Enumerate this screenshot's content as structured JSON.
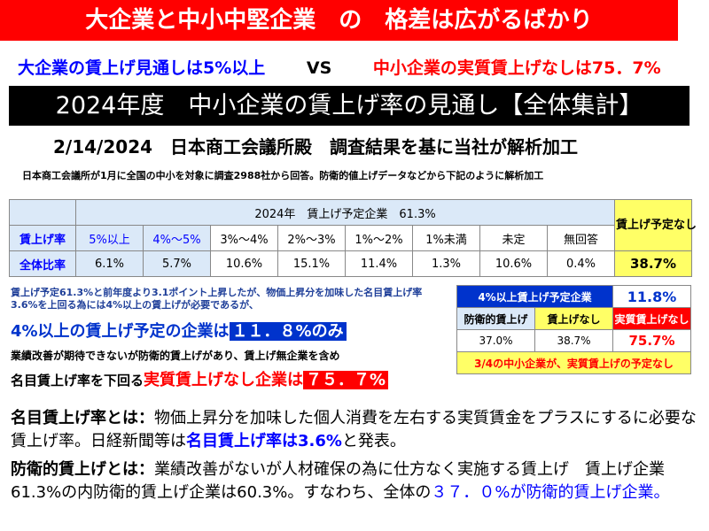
{
  "header": {
    "title": "大企業と中小中堅企業　の　格差は広がるばかり",
    "comparison": {
      "left": "大企業の賃上げ見通しは5%以上",
      "vs": "VS",
      "right": "中小企業の実質賃上げなしは75．7%"
    },
    "banner": "2024年度　中小企業の賃上げ率の見通し【全体集計】",
    "source": "2/14/2024　日本商工会議所殿　調査結果を基に当社が解析加工",
    "note": "日本商工会議所が1月に全国の中小を対象に調査2988社から回答。防衛的値上げデータなどから下記のように解析加工"
  },
  "table": {
    "group_header": "2024年　賃上げ予定企業　61.3%",
    "no_raise_header": "賃上げ予定なし",
    "rows": [
      [
        "賃上げ率",
        "5%以上",
        "4%～5%",
        "3%～4%",
        "2%～3%",
        "1%～2%",
        "1%未満",
        "未定",
        "無回答"
      ],
      [
        "全体比率",
        "6.1%",
        "5.7%",
        "10.6%",
        "15.1%",
        "11.4%",
        "1.3%",
        "10.6%",
        "0.4%",
        "38.7%"
      ]
    ]
  },
  "analysis": {
    "intro": "賃上げ予定61.3%と前年度より3.1ポイント上昇したが、物価上昇分を加味した名目賃上げ率3.6%を上回る為には4%以上の賃上げが必要であるが、",
    "highlight1": {
      "text": "4%以上の賃上げ予定の企業は",
      "value": "１１．８%のみ"
    },
    "line2": "業績改善が期待できないが防衛的賃上げがあり、賃上げ無企業を含め",
    "highlight2": {
      "prefix": "名目賃上げ率を下回る",
      "text": "実質賃上げなし企業は",
      "value": "７５．７%"
    }
  },
  "summary_table": {
    "top_label": "4%以上賃上げ予定企業",
    "top_value": "11.8%",
    "headers": [
      "防衛的賃上げ",
      "賃上げなし",
      "実質賃上げなし"
    ],
    "values": [
      "37.0%",
      "38.7%",
      "75.7%"
    ],
    "footer": "3/4の中小企業が、実質賃上げの予定なし"
  },
  "definitions": [
    {
      "term": "名目賃上げ率とは：",
      "text": "物価上昇分を加味した個人消費を左右する実質賃金をプラスにするに必要な賃上げ率。日経新聞等は",
      "emphasis": "名目賃上げ率は3.6%",
      "suffix": "と発表。"
    },
    {
      "term": "防衛的賃上げとは：",
      "text": "業績改善がないが人材確保の為に仕方なく実施する賃上げ　賃上げ企業61.3%の内防衛的賃上げ企業は60.3%。すなわち、全体の",
      "emphasis": "３７．０%が防衛的賃上げ企業。",
      "suffix": ""
    }
  ]
}
